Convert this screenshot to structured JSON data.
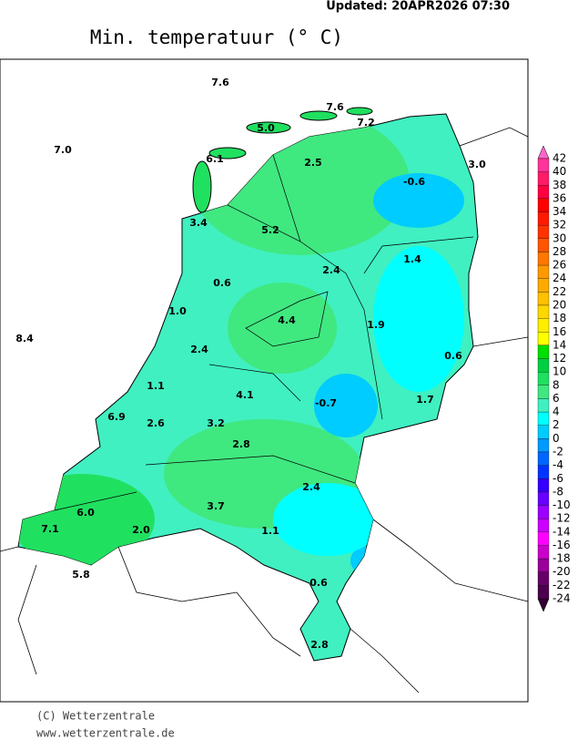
{
  "header": {
    "updated": "Updated:  20APR2026 07:30"
  },
  "title": "Min. temperatuur (° C)",
  "stations": [
    "7.6",
    "7.0",
    "7.6",
    "7.2",
    "5.0",
    "6.1",
    "2.5",
    "3.0",
    "-0.6",
    "3.4",
    "5.2",
    "2.4",
    "1.4",
    "0.6",
    "1.0",
    "4.4",
    "1.9",
    "8.4",
    "2.4",
    "0.6",
    "1.1",
    "4.1",
    "-0.7",
    "1.7",
    "6.9",
    "2.6",
    "3.2",
    "2.8",
    "2.4",
    "6.0",
    "3.7",
    "7.1",
    "2.0",
    "1.1",
    "0.6",
    "5.8",
    "2.8"
  ],
  "legend": {
    "labels": [
      "42",
      "40",
      "38",
      "36",
      "34",
      "32",
      "30",
      "28",
      "26",
      "24",
      "22",
      "20",
      "18",
      "16",
      "14",
      "12",
      "10",
      "8",
      "6",
      "4",
      "2",
      "0",
      "-2",
      "-4",
      "-6",
      "-8",
      "-10",
      "-12",
      "-14",
      "-16",
      "-18",
      "-20",
      "-22",
      "-24"
    ],
    "colors": [
      "#ff3399",
      "#ff1a66",
      "#ff0040",
      "#ff0000",
      "#ff1a00",
      "#ff3300",
      "#ff5500",
      "#ff7700",
      "#ff9900",
      "#ffaa00",
      "#ffc000",
      "#ffd700",
      "#ffee00",
      "#ffff00",
      "#00e000",
      "#00d040",
      "#20e060",
      "#40e880",
      "#40f0c0",
      "#00ffff",
      "#00ccff",
      "#0099ff",
      "#0066ff",
      "#0033ff",
      "#3300ff",
      "#6600ff",
      "#9900ff",
      "#cc00ff",
      "#ff00ff",
      "#cc00cc",
      "#990099",
      "#660066",
      "#4d004d"
    ],
    "top_color": "#ff66cc",
    "bottom_color": "#330033"
  },
  "footer": {
    "copyright": "(C) Wetterzentrale",
    "url": "www.wetterzentrale.de"
  }
}
